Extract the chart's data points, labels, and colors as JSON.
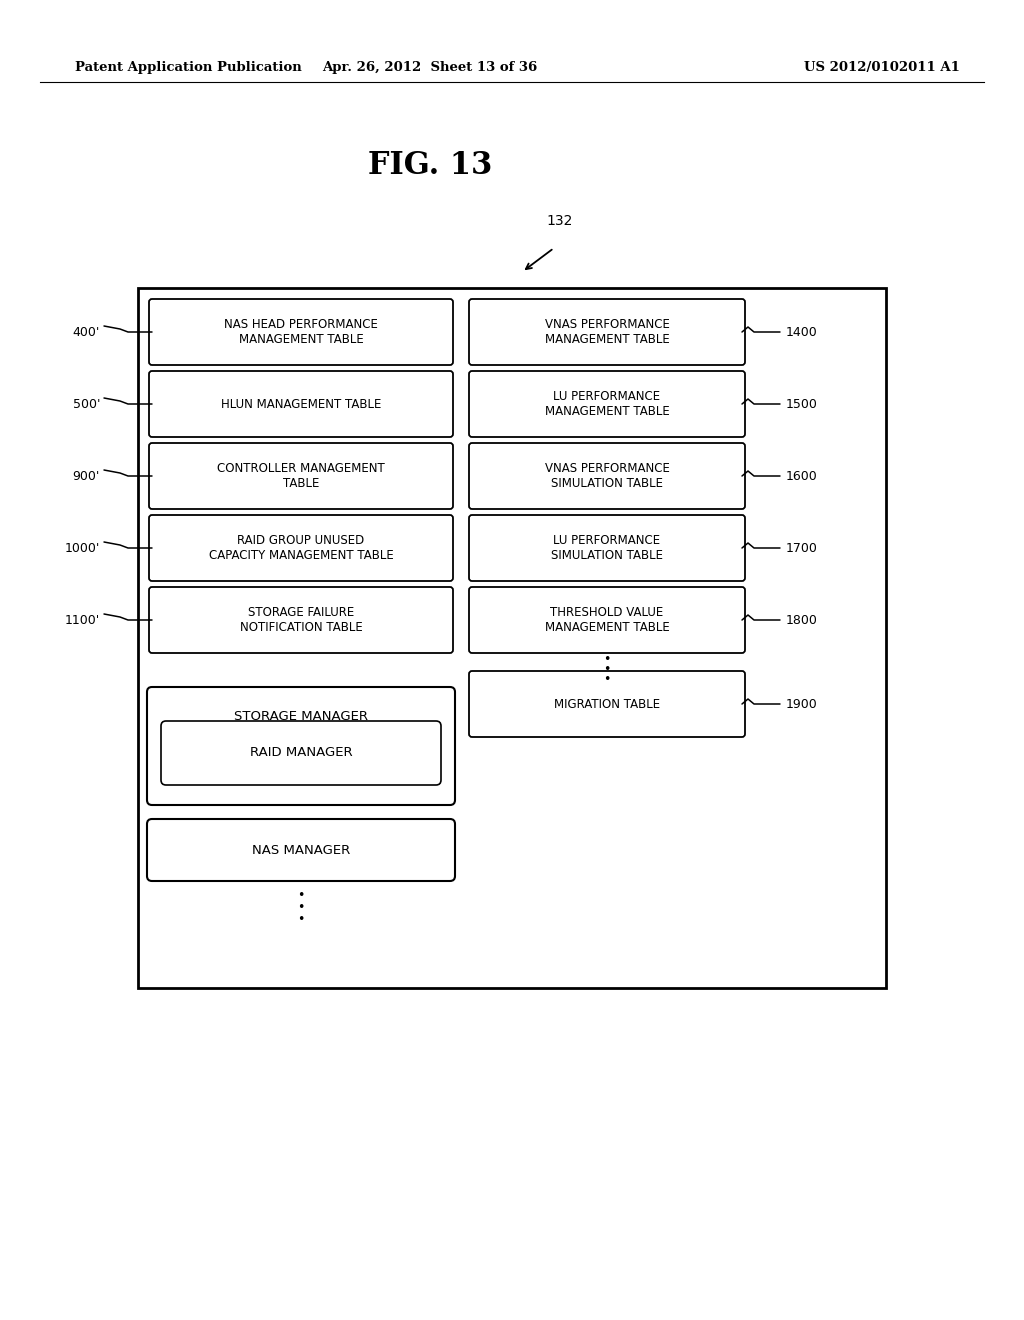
{
  "title": "FIG. 13",
  "header_left": "Patent Application Publication",
  "header_mid": "Apr. 26, 2012  Sheet 13 of 36",
  "header_right": "US 2012/0102011 A1",
  "fig_label": "132",
  "bg_color": "#ffffff",
  "left_boxes": [
    {
      "label": "NAS HEAD PERFORMANCE\nMANAGEMENT TABLE",
      "left_label": "400'"
    },
    {
      "label": "HLUN MANAGEMENT TABLE",
      "left_label": "500'"
    },
    {
      "label": "CONTROLLER MANAGEMENT\nTABLE",
      "left_label": "900'"
    },
    {
      "label": "RAID GROUP UNUSED\nCAPACITY MANAGEMENT TABLE",
      "left_label": "1000'"
    },
    {
      "label": "STORAGE FAILURE\nNOTIFICATION TABLE",
      "left_label": "1100'"
    }
  ],
  "right_boxes": [
    {
      "label": "VNAS PERFORMANCE\nMANAGEMENT TABLE",
      "right_label": "1400"
    },
    {
      "label": "LU PERFORMANCE\nMANAGEMENT TABLE",
      "right_label": "1500"
    },
    {
      "label": "VNAS PERFORMANCE\nSIMULATION TABLE",
      "right_label": "1600"
    },
    {
      "label": "LU PERFORMANCE\nSIMULATION TABLE",
      "right_label": "1700"
    },
    {
      "label": "THRESHOLD VALUE\nMANAGEMENT TABLE",
      "right_label": "1800"
    },
    {
      "label": "MIGRATION TABLE",
      "right_label": "1900"
    }
  ]
}
